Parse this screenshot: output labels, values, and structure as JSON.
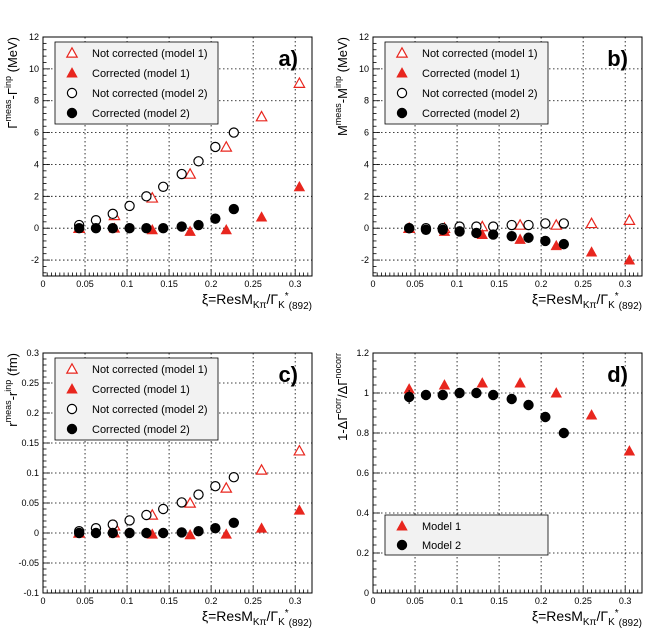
{
  "figure": {
    "xlabel_main": "ξ=ResM",
    "xlabel_sub1": "Kπ",
    "xlabel_slash": "/Γ",
    "xlabel_sub2": "K",
    "xlabel_sup2": "*",
    "xlabel_sub3": "(892)"
  },
  "colors": {
    "red": "#e8261e",
    "black": "#000000",
    "grid": "#000000"
  },
  "chart_data": [
    {
      "type": "scatter",
      "panel_label": "a)",
      "ylabel_main": "Γ",
      "ylabel_sup1": "meas",
      "ylabel_mid": "-Γ",
      "ylabel_sup2": "inp",
      "ylabel_unit": " (MeV)",
      "xlim": [
        0,
        0.32
      ],
      "ylim": [
        -3,
        12
      ],
      "xticks": [
        "0",
        "0.05",
        "0.1",
        "0.15",
        "0.2",
        "0.25",
        "0.3"
      ],
      "xtick_values": [
        0,
        0.05,
        0.1,
        0.15,
        0.2,
        0.25,
        0.3
      ],
      "yticks": [
        "-2",
        "0",
        "2",
        "4",
        "6",
        "8",
        "10",
        "12"
      ],
      "ytick_values": [
        -2,
        0,
        2,
        4,
        6,
        8,
        10,
        12
      ],
      "legend_position": "top-left",
      "series": [
        {
          "name": "Not corrected (model 1)",
          "marker": "triangle-open",
          "color": "#e8261e",
          "x": [
            0.043,
            0.085,
            0.13,
            0.175,
            0.218,
            0.26,
            0.305
          ],
          "y": [
            0.0,
            0.8,
            1.9,
            3.4,
            5.1,
            7.0,
            9.1
          ]
        },
        {
          "name": "Corrected (model 1)",
          "marker": "triangle-filled",
          "color": "#e8261e",
          "x": [
            0.043,
            0.085,
            0.13,
            0.175,
            0.218,
            0.26,
            0.305
          ],
          "y": [
            0.0,
            0.0,
            -0.1,
            -0.2,
            -0.1,
            0.7,
            2.6
          ]
        },
        {
          "name": "Not corrected (model 2)",
          "marker": "circle-open",
          "color": "#000000",
          "x": [
            0.043,
            0.063,
            0.083,
            0.103,
            0.123,
            0.143,
            0.165,
            0.185,
            0.205,
            0.227
          ],
          "y": [
            0.2,
            0.5,
            0.9,
            1.4,
            2.0,
            2.6,
            3.4,
            4.2,
            5.1,
            6.0
          ]
        },
        {
          "name": "Corrected (model 2)",
          "marker": "circle-filled",
          "color": "#000000",
          "x": [
            0.043,
            0.063,
            0.083,
            0.103,
            0.123,
            0.143,
            0.165,
            0.185,
            0.205,
            0.227
          ],
          "y": [
            0.0,
            0.0,
            0.0,
            0.0,
            0.0,
            0.0,
            0.1,
            0.2,
            0.6,
            1.2
          ]
        }
      ]
    },
    {
      "type": "scatter",
      "panel_label": "b)",
      "ylabel_main": "M",
      "ylabel_sup1": "meas",
      "ylabel_mid": "-M",
      "ylabel_sup2": "inp",
      "ylabel_unit": " (MeV)",
      "xlim": [
        0,
        0.32
      ],
      "ylim": [
        -3,
        12
      ],
      "xticks": [
        "0",
        "0.05",
        "0.1",
        "0.15",
        "0.2",
        "0.25",
        "0.3"
      ],
      "xtick_values": [
        0,
        0.05,
        0.1,
        0.15,
        0.2,
        0.25,
        0.3
      ],
      "yticks": [
        "-2",
        "0",
        "2",
        "4",
        "6",
        "8",
        "10",
        "12"
      ],
      "ytick_values": [
        -2,
        0,
        2,
        4,
        6,
        8,
        10,
        12
      ],
      "legend_position": "top-left",
      "series": [
        {
          "name": "Not corrected (model 1)",
          "marker": "triangle-open",
          "color": "#e8261e",
          "x": [
            0.043,
            0.085,
            0.13,
            0.175,
            0.218,
            0.26,
            0.305
          ],
          "y": [
            0.0,
            0.0,
            0.1,
            0.2,
            0.2,
            0.3,
            0.5
          ]
        },
        {
          "name": "Corrected (model 1)",
          "marker": "triangle-filled",
          "color": "#e8261e",
          "x": [
            0.043,
            0.085,
            0.13,
            0.175,
            0.218,
            0.26,
            0.305
          ],
          "y": [
            0.0,
            -0.2,
            -0.4,
            -0.7,
            -1.1,
            -1.5,
            -2.0
          ]
        },
        {
          "name": "Not corrected (model 2)",
          "marker": "circle-open",
          "color": "#000000",
          "x": [
            0.043,
            0.063,
            0.083,
            0.103,
            0.123,
            0.143,
            0.165,
            0.185,
            0.205,
            0.227
          ],
          "y": [
            0.0,
            0.0,
            0.0,
            0.1,
            0.1,
            0.1,
            0.2,
            0.2,
            0.3,
            0.3
          ]
        },
        {
          "name": "Corrected (model 2)",
          "marker": "circle-filled",
          "color": "#000000",
          "x": [
            0.043,
            0.063,
            0.083,
            0.103,
            0.123,
            0.143,
            0.165,
            0.185,
            0.205,
            0.227
          ],
          "y": [
            0.0,
            -0.1,
            -0.1,
            -0.2,
            -0.3,
            -0.4,
            -0.5,
            -0.6,
            -0.8,
            -1.0
          ]
        }
      ]
    },
    {
      "type": "scatter",
      "panel_label": "c)",
      "ylabel_main": "r",
      "ylabel_sup1": "meas",
      "ylabel_mid": "-r",
      "ylabel_sup2": "inp",
      "ylabel_unit": " (fm)",
      "xlim": [
        0,
        0.32
      ],
      "ylim": [
        -0.1,
        0.3
      ],
      "xticks": [
        "0",
        "0.05",
        "0.1",
        "0.15",
        "0.2",
        "0.25",
        "0.3"
      ],
      "xtick_values": [
        0,
        0.05,
        0.1,
        0.15,
        0.2,
        0.25,
        0.3
      ],
      "yticks": [
        "-0.1",
        "-0.05",
        "0",
        "0.05",
        "0.1",
        "0.15",
        "0.2",
        "0.25",
        "0.3"
      ],
      "ytick_values": [
        -0.1,
        -0.05,
        0,
        0.05,
        0.1,
        0.15,
        0.2,
        0.25,
        0.3
      ],
      "legend_position": "top-left",
      "series": [
        {
          "name": "Not corrected (model 1)",
          "marker": "triangle-open",
          "color": "#e8261e",
          "x": [
            0.043,
            0.085,
            0.13,
            0.175,
            0.218,
            0.26,
            0.305
          ],
          "y": [
            0.0,
            0.012,
            0.03,
            0.05,
            0.075,
            0.105,
            0.137
          ]
        },
        {
          "name": "Corrected (model 1)",
          "marker": "triangle-filled",
          "color": "#e8261e",
          "x": [
            0.043,
            0.085,
            0.13,
            0.175,
            0.218,
            0.26,
            0.305
          ],
          "y": [
            0.0,
            0.0,
            -0.002,
            -0.003,
            -0.002,
            0.008,
            0.038
          ]
        },
        {
          "name": "Not corrected (model 2)",
          "marker": "circle-open",
          "color": "#000000",
          "x": [
            0.043,
            0.063,
            0.083,
            0.103,
            0.123,
            0.143,
            0.165,
            0.185,
            0.205,
            0.227
          ],
          "y": [
            0.003,
            0.008,
            0.014,
            0.021,
            0.03,
            0.04,
            0.051,
            0.064,
            0.078,
            0.093
          ]
        },
        {
          "name": "Corrected (model 2)",
          "marker": "circle-filled",
          "color": "#000000",
          "x": [
            0.043,
            0.063,
            0.083,
            0.103,
            0.123,
            0.143,
            0.165,
            0.185,
            0.205,
            0.227
          ],
          "y": [
            0.0,
            0.0,
            0.0,
            0.0,
            0.0,
            0.0,
            0.001,
            0.003,
            0.008,
            0.017
          ]
        }
      ]
    },
    {
      "type": "scatter",
      "panel_label": "d)",
      "ylabel_main": "1-ΔΓ",
      "ylabel_sup1": "corr",
      "ylabel_mid": "/ΔΓ",
      "ylabel_sup2": "nocorr",
      "ylabel_unit": "",
      "xlim": [
        0,
        0.32
      ],
      "ylim": [
        0,
        1.2
      ],
      "xticks": [
        "0",
        "0.05",
        "0.1",
        "0.15",
        "0.2",
        "0.25",
        "0.3"
      ],
      "xtick_values": [
        0,
        0.05,
        0.1,
        0.15,
        0.2,
        0.25,
        0.3
      ],
      "yticks": [
        "0",
        "0.2",
        "0.4",
        "0.6",
        "0.8",
        "1",
        "1.2"
      ],
      "ytick_values": [
        0,
        0.2,
        0.4,
        0.6,
        0.8,
        1.0,
        1.2
      ],
      "legend_position": "bottom-left",
      "series": [
        {
          "name": "Model 1",
          "marker": "triangle-filled",
          "color": "#e8261e",
          "x": [
            0.043,
            0.085,
            0.13,
            0.175,
            0.218,
            0.26,
            0.305
          ],
          "y": [
            1.02,
            1.04,
            1.05,
            1.05,
            1.0,
            0.89,
            0.71
          ]
        },
        {
          "name": "Model 2",
          "marker": "circle-filled",
          "color": "#000000",
          "x": [
            0.043,
            0.063,
            0.083,
            0.103,
            0.123,
            0.143,
            0.165,
            0.185,
            0.205,
            0.227
          ],
          "y": [
            0.98,
            0.99,
            0.99,
            1.0,
            1.0,
            0.99,
            0.97,
            0.94,
            0.88,
            0.8
          ],
          "yerr_first": 0.035
        }
      ]
    }
  ]
}
